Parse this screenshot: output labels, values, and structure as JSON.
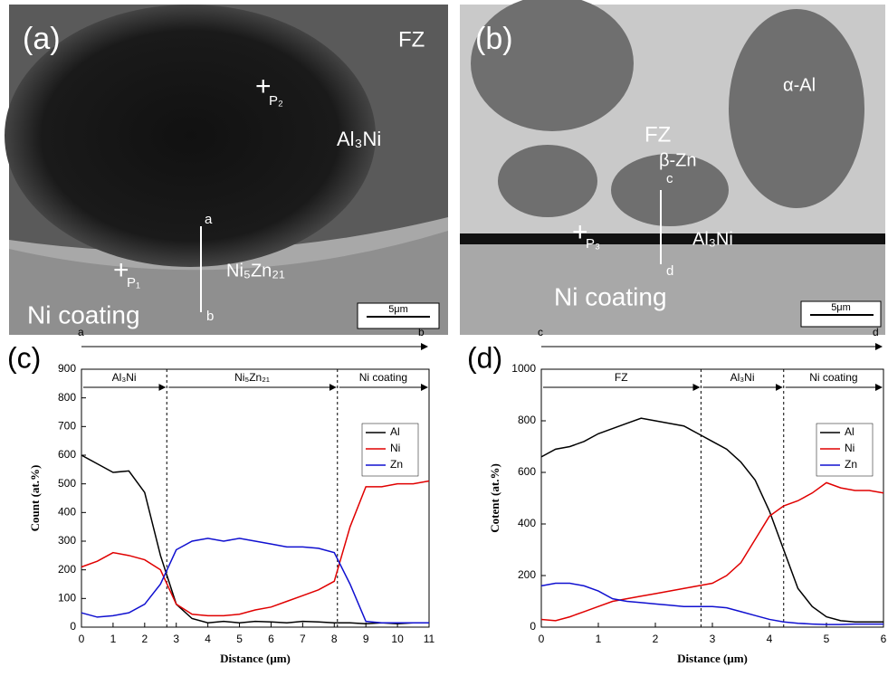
{
  "micrographs": [
    {
      "panel": "(a)",
      "labels": [
        "FZ",
        "P₂",
        "Al₃Ni",
        "a",
        "P₁",
        "Ni₅Zn₂₁",
        "Ni coating",
        "b"
      ],
      "scale_bar": "5μm"
    },
    {
      "panel": "(b)",
      "labels": [
        "α-Al",
        "FZ",
        "β-Zn",
        "c",
        "P₃",
        "Al₃Ni",
        "d",
        "Ni coating"
      ],
      "scale_bar": "5μm"
    }
  ],
  "chart_data": [
    {
      "type": "line",
      "panel": "(c)",
      "profile": {
        "from": "a",
        "to": "b"
      },
      "x_label": "Distance (μm)",
      "y_label": "Count (at.%)",
      "x": [
        0,
        0.5,
        1,
        1.5,
        2,
        2.5,
        3,
        3.5,
        4,
        4.5,
        5,
        5.5,
        6,
        6.5,
        7,
        7.5,
        8,
        8.5,
        9,
        9.5,
        10,
        10.5,
        11
      ],
      "series": [
        {
          "name": "Al",
          "color": "#000000",
          "values": [
            600,
            570,
            540,
            545,
            470,
            250,
            80,
            30,
            15,
            20,
            15,
            20,
            18,
            15,
            20,
            18,
            15,
            15,
            12,
            15,
            12,
            15,
            15
          ]
        },
        {
          "name": "Ni",
          "color": "#e00000",
          "values": [
            210,
            230,
            260,
            250,
            235,
            200,
            80,
            45,
            40,
            40,
            45,
            60,
            70,
            90,
            110,
            130,
            160,
            350,
            490,
            490,
            500,
            500,
            510
          ]
        },
        {
          "name": "Zn",
          "color": "#1010d0",
          "values": [
            50,
            35,
            40,
            50,
            80,
            150,
            270,
            300,
            310,
            300,
            310,
            300,
            290,
            280,
            280,
            275,
            260,
            150,
            20,
            15,
            15,
            15,
            15
          ]
        }
      ],
      "regions": [
        {
          "label": "Al₃Ni",
          "start": 0,
          "end": 2.7
        },
        {
          "label": "Ni₅Zn₂₁",
          "start": 2.7,
          "end": 8.1
        },
        {
          "label": "Ni coating",
          "start": 8.1,
          "end": 11
        }
      ],
      "xlim": [
        0,
        11
      ],
      "xticks": [
        0,
        1,
        2,
        3,
        4,
        5,
        6,
        7,
        8,
        9,
        10,
        11
      ],
      "ylim": [
        0,
        900
      ],
      "yticks": [
        0,
        100,
        200,
        300,
        400,
        500,
        600,
        700,
        800,
        900
      ],
      "legend": "right"
    },
    {
      "type": "line",
      "panel": "(d)",
      "profile": {
        "from": "c",
        "to": "d"
      },
      "x_label": "Distance (μm)",
      "y_label": "Cotent (at.%)",
      "x": [
        0,
        0.25,
        0.5,
        0.75,
        1,
        1.25,
        1.5,
        1.75,
        2,
        2.25,
        2.5,
        2.75,
        3,
        3.25,
        3.5,
        3.75,
        4,
        4.25,
        4.5,
        4.75,
        5,
        5.25,
        5.5,
        5.75,
        6
      ],
      "series": [
        {
          "name": "Al",
          "color": "#000000",
          "values": [
            660,
            690,
            700,
            720,
            750,
            770,
            790,
            810,
            800,
            790,
            780,
            750,
            720,
            690,
            640,
            570,
            450,
            300,
            150,
            80,
            40,
            25,
            20,
            20,
            20
          ]
        },
        {
          "name": "Ni",
          "color": "#e00000",
          "values": [
            30,
            25,
            40,
            60,
            80,
            100,
            110,
            120,
            130,
            140,
            150,
            160,
            170,
            200,
            250,
            340,
            430,
            470,
            490,
            520,
            560,
            540,
            530,
            530,
            520
          ]
        },
        {
          "name": "Zn",
          "color": "#1010d0",
          "values": [
            160,
            170,
            170,
            160,
            140,
            110,
            100,
            95,
            90,
            85,
            80,
            80,
            80,
            75,
            60,
            45,
            30,
            20,
            15,
            12,
            10,
            10,
            12,
            12,
            12
          ]
        }
      ],
      "regions": [
        {
          "label": "FZ",
          "start": 0,
          "end": 2.8
        },
        {
          "label": "Al₃Ni",
          "start": 2.8,
          "end": 4.25
        },
        {
          "label": "Ni coating",
          "start": 4.25,
          "end": 6
        }
      ],
      "xlim": [
        0,
        6
      ],
      "xticks": [
        0,
        1,
        2,
        3,
        4,
        5,
        6
      ],
      "ylim": [
        0,
        1000
      ],
      "yticks": [
        0,
        200,
        400,
        600,
        800,
        1000
      ],
      "legend": "right"
    }
  ]
}
